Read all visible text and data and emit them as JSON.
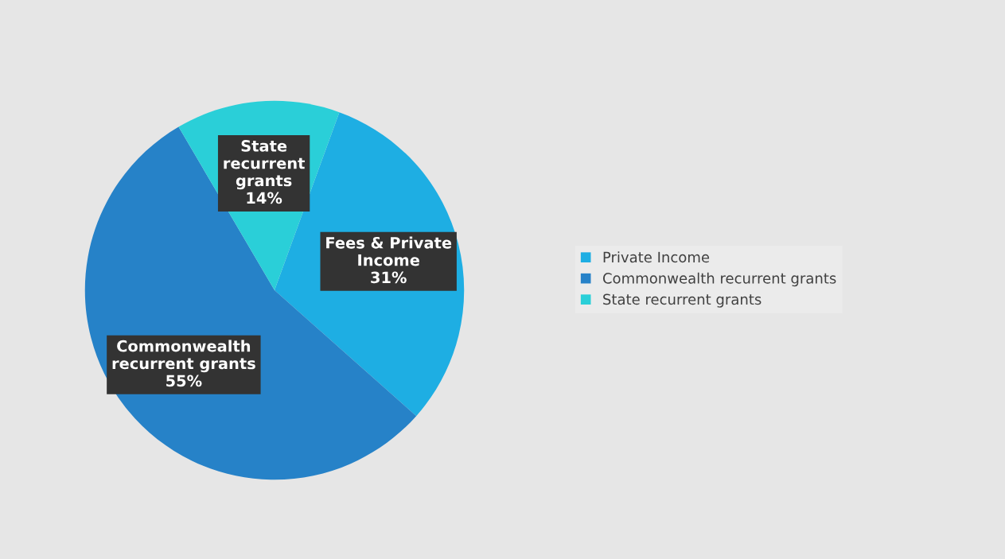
{
  "chart_data": {
    "type": "pie",
    "categories": [
      "Private Income",
      "Commonwealth recurrent grants",
      "State recurrent grants"
    ],
    "values": [
      31,
      55,
      14
    ],
    "colors": [
      "#1eaee3",
      "#2682c8",
      "#2acfd8"
    ],
    "value_labels": [
      "Fees & Private\nIncome\n31%",
      "Commonwealth\nrecurrent grants\n55%",
      "State\nrecurrent\ngrants\n14%"
    ],
    "legend": "right"
  }
}
